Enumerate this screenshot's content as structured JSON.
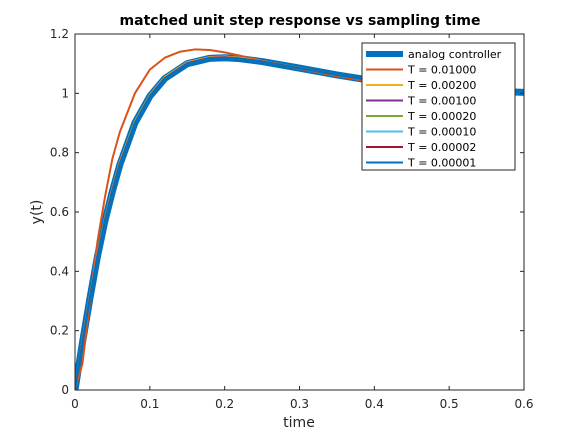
{
  "chart_data": {
    "type": "line",
    "title": "matched unit step response vs sampling time",
    "xlabel": "time",
    "ylabel": "y(t)",
    "xlim": [
      0,
      0.6
    ],
    "ylim": [
      0,
      1.2
    ],
    "xticks": [
      0,
      0.1,
      0.2,
      0.3,
      0.4,
      0.5,
      0.6
    ],
    "xtick_labels": [
      "0",
      "0.1",
      "0.2",
      "0.3",
      "0.4",
      "0.5",
      "0.6"
    ],
    "yticks": [
      0,
      0.2,
      0.4,
      0.6,
      0.8,
      1,
      1.2
    ],
    "ytick_labels": [
      "0",
      "0.2",
      "0.4",
      "0.6",
      "0.8",
      "1",
      "1.2"
    ],
    "grid": false,
    "legend_position": "top-right",
    "series": [
      {
        "name": "analog controller",
        "color": "#0072BD",
        "width": "thick",
        "x": [
          0,
          0.01,
          0.02,
          0.03,
          0.04,
          0.05,
          0.06,
          0.08,
          0.1,
          0.12,
          0.15,
          0.18,
          0.2,
          0.22,
          0.25,
          0.3,
          0.35,
          0.4,
          0.45,
          0.5,
          0.55,
          0.6
        ],
        "y": [
          0,
          0.16,
          0.31,
          0.45,
          0.57,
          0.67,
          0.76,
          0.9,
          0.99,
          1.05,
          1.1,
          1.118,
          1.12,
          1.117,
          1.107,
          1.085,
          1.062,
          1.042,
          1.026,
          1.015,
          1.008,
          1.003
        ]
      },
      {
        "name": "T = 0.01000",
        "color": "#D95319",
        "x": [
          0,
          0.01,
          0.02,
          0.03,
          0.04,
          0.05,
          0.06,
          0.08,
          0.1,
          0.12,
          0.14,
          0.16,
          0.18,
          0.2,
          0.22,
          0.25,
          0.3,
          0.35,
          0.4,
          0.45,
          0.5,
          0.55,
          0.6
        ],
        "y": [
          0,
          0.09,
          0.3,
          0.5,
          0.65,
          0.78,
          0.87,
          1.0,
          1.08,
          1.12,
          1.14,
          1.148,
          1.146,
          1.138,
          1.127,
          1.11,
          1.083,
          1.058,
          1.037,
          1.022,
          1.012,
          1.006,
          1.002
        ]
      },
      {
        "name": "T = 0.00200",
        "color": "#EDB120",
        "x": [
          0,
          0.01,
          0.02,
          0.03,
          0.04,
          0.05,
          0.06,
          0.08,
          0.1,
          0.12,
          0.15,
          0.18,
          0.2,
          0.22,
          0.25,
          0.3,
          0.35,
          0.4,
          0.45,
          0.5,
          0.55,
          0.6
        ],
        "y": [
          0,
          0.17,
          0.32,
          0.46,
          0.58,
          0.68,
          0.77,
          0.905,
          0.995,
          1.055,
          1.105,
          1.122,
          1.124,
          1.12,
          1.109,
          1.086,
          1.062,
          1.042,
          1.026,
          1.015,
          1.008,
          1.003
        ]
      },
      {
        "name": "T = 0.00100",
        "color": "#7E2F8E",
        "x": [
          0,
          0.01,
          0.02,
          0.03,
          0.04,
          0.05,
          0.06,
          0.08,
          0.1,
          0.12,
          0.15,
          0.18,
          0.2,
          0.22,
          0.25,
          0.3,
          0.35,
          0.4,
          0.45,
          0.5,
          0.55,
          0.6
        ],
        "y": [
          0,
          0.165,
          0.315,
          0.455,
          0.575,
          0.675,
          0.765,
          0.9,
          0.992,
          1.052,
          1.102,
          1.12,
          1.122,
          1.118,
          1.108,
          1.085,
          1.062,
          1.042,
          1.026,
          1.015,
          1.008,
          1.003
        ]
      },
      {
        "name": "T = 0.00020",
        "color": "#77AC30",
        "x": [
          0,
          0.01,
          0.02,
          0.03,
          0.04,
          0.05,
          0.06,
          0.08,
          0.1,
          0.12,
          0.15,
          0.18,
          0.2,
          0.22,
          0.25,
          0.3,
          0.35,
          0.4,
          0.45,
          0.5,
          0.55,
          0.6
        ],
        "y": [
          0,
          0.16,
          0.31,
          0.45,
          0.57,
          0.67,
          0.76,
          0.9,
          0.99,
          1.05,
          1.1,
          1.118,
          1.12,
          1.117,
          1.107,
          1.085,
          1.062,
          1.042,
          1.026,
          1.015,
          1.008,
          1.003
        ]
      },
      {
        "name": "T = 0.00010",
        "color": "#4DBEEE",
        "x": [
          0,
          0.01,
          0.02,
          0.03,
          0.04,
          0.05,
          0.06,
          0.08,
          0.1,
          0.12,
          0.15,
          0.18,
          0.2,
          0.22,
          0.25,
          0.3,
          0.35,
          0.4,
          0.45,
          0.5,
          0.55,
          0.6
        ],
        "y": [
          0,
          0.16,
          0.31,
          0.45,
          0.57,
          0.67,
          0.76,
          0.9,
          0.99,
          1.05,
          1.1,
          1.118,
          1.12,
          1.117,
          1.107,
          1.085,
          1.062,
          1.042,
          1.026,
          1.015,
          1.008,
          1.003
        ]
      },
      {
        "name": "T = 0.00002",
        "color": "#A2142F",
        "x": [
          0,
          0.01,
          0.02,
          0.03,
          0.04,
          0.05,
          0.06,
          0.08,
          0.1,
          0.12,
          0.15,
          0.18,
          0.2,
          0.22,
          0.25,
          0.3,
          0.35,
          0.4,
          0.45,
          0.5,
          0.55,
          0.6
        ],
        "y": [
          0,
          0.16,
          0.31,
          0.45,
          0.57,
          0.67,
          0.76,
          0.9,
          0.99,
          1.05,
          1.1,
          1.118,
          1.12,
          1.117,
          1.107,
          1.085,
          1.062,
          1.042,
          1.026,
          1.015,
          1.008,
          1.003
        ]
      },
      {
        "name": "T = 0.00001",
        "color": "#0072BD",
        "x": [
          0,
          0.01,
          0.02,
          0.03,
          0.04,
          0.05,
          0.06,
          0.08,
          0.1,
          0.12,
          0.15,
          0.18,
          0.2,
          0.22,
          0.25,
          0.3,
          0.35,
          0.4,
          0.45,
          0.5,
          0.55,
          0.6
        ],
        "y": [
          0,
          0.16,
          0.31,
          0.45,
          0.57,
          0.67,
          0.76,
          0.9,
          0.99,
          1.05,
          1.1,
          1.118,
          1.12,
          1.117,
          1.107,
          1.085,
          1.062,
          1.042,
          1.026,
          1.015,
          1.008,
          1.003
        ]
      }
    ]
  }
}
